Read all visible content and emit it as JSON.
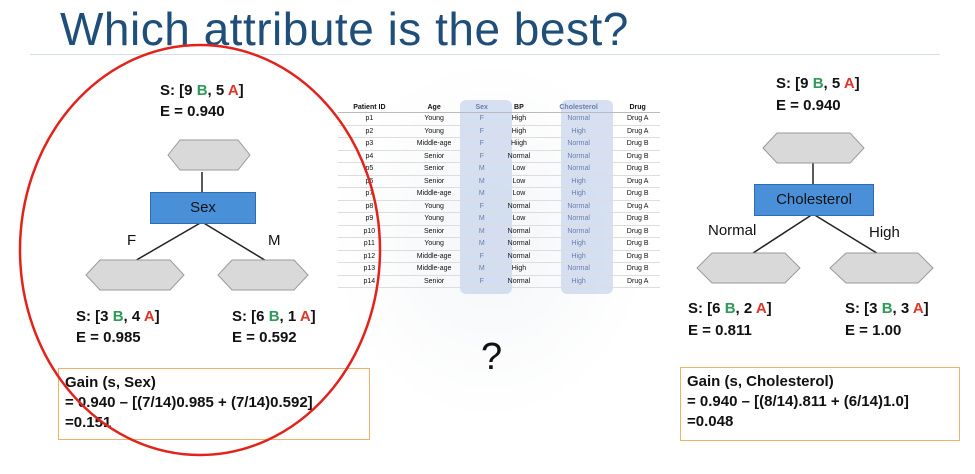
{
  "title": "Which attribute is the best?",
  "question_mark": "?",
  "left_tree": {
    "root": {
      "prefix": "S: [9 ",
      "b": "B",
      "mid": ", 5 ",
      "a": "A",
      "suffix": "]",
      "entropy": "E = 0.940"
    },
    "attribute": "Sex",
    "branch_left": "F",
    "branch_right": "M",
    "child_left": {
      "prefix": "S: [3 ",
      "b": "B",
      "mid": ", 4 ",
      "a": "A",
      "suffix": "]",
      "entropy": "E = 0.985"
    },
    "child_right": {
      "prefix": "S: [6 ",
      "b": "B",
      "mid": ", 1 ",
      "a": "A",
      "suffix": "]",
      "entropy": "E = 0.592"
    },
    "gain": {
      "line1": "Gain (s, Sex)",
      "line2": "= 0.940 – [(7/14)0.985 + (7/14)0.592]",
      "line3": "=0.151"
    }
  },
  "right_tree": {
    "root": {
      "prefix": "S: [9 ",
      "b": "B",
      "mid": ", 5 ",
      "a": "A",
      "suffix": "]",
      "entropy": "E = 0.940"
    },
    "attribute": "Cholesterol",
    "branch_left": "Normal",
    "branch_right": "High",
    "child_left": {
      "prefix": "S: [6 ",
      "b": "B",
      "mid": ", 2 ",
      "a": "A",
      "suffix": "]",
      "entropy": "E = 0.811"
    },
    "child_right": {
      "prefix": "S: [3 ",
      "b": "B",
      "mid": ", 3 ",
      "a": "A",
      "suffix": "]",
      "entropy": "E = 1.00"
    },
    "gain": {
      "line1": "Gain (s, Cholesterol)",
      "line2": "= 0.940 – [(8/14).811 + (6/14)1.0]",
      "line3": "=0.048"
    }
  },
  "table": {
    "headers": [
      "Patient ID",
      "Age",
      "Sex",
      "BP",
      "Cholesterol",
      "Drug"
    ],
    "rows": [
      [
        "p1",
        "Young",
        "F",
        "High",
        "Normal",
        "Drug A"
      ],
      [
        "p2",
        "Young",
        "F",
        "High",
        "High",
        "Drug A"
      ],
      [
        "p3",
        "Middle-age",
        "F",
        "Hiigh",
        "Normal",
        "Drug B"
      ],
      [
        "p4",
        "Senior",
        "F",
        "Normal",
        "Normal",
        "Drug B"
      ],
      [
        "p5",
        "Senior",
        "M",
        "Low",
        "Normal",
        "Drug B"
      ],
      [
        "p6",
        "Senior",
        "M",
        "Low",
        "High",
        "Drug A"
      ],
      [
        "p7",
        "Middle-age",
        "M",
        "Low",
        "High",
        "Drug B"
      ],
      [
        "p8",
        "Young",
        "F",
        "Normal",
        "Normal",
        "Drug A"
      ],
      [
        "p9",
        "Young",
        "M",
        "Low",
        "Normal",
        "Drug B"
      ],
      [
        "p10",
        "Senior",
        "M",
        "Normal",
        "Normal",
        "Drug B"
      ],
      [
        "p11",
        "Young",
        "M",
        "Normal",
        "High",
        "Drug B"
      ],
      [
        "p12",
        "Middle-age",
        "F",
        "Normal",
        "High",
        "Drug B"
      ],
      [
        "p13",
        "Middle-age",
        "M",
        "High",
        "Normal",
        "Drug B"
      ],
      [
        "p14",
        "Senior",
        "F",
        "Normal",
        "High",
        "Drug A"
      ]
    ],
    "highlighted_columns": [
      "Sex",
      "Cholesterol"
    ]
  },
  "colors": {
    "title": "#1f4e79",
    "class_b": "#2e9a57",
    "class_a": "#e0352b",
    "attribute_box": "#4a90d9",
    "leaf_node": "#d9d9d9",
    "circle": "#e3231b",
    "gain_border": "#f0b06a",
    "column_highlight": "#c8d6ee"
  }
}
